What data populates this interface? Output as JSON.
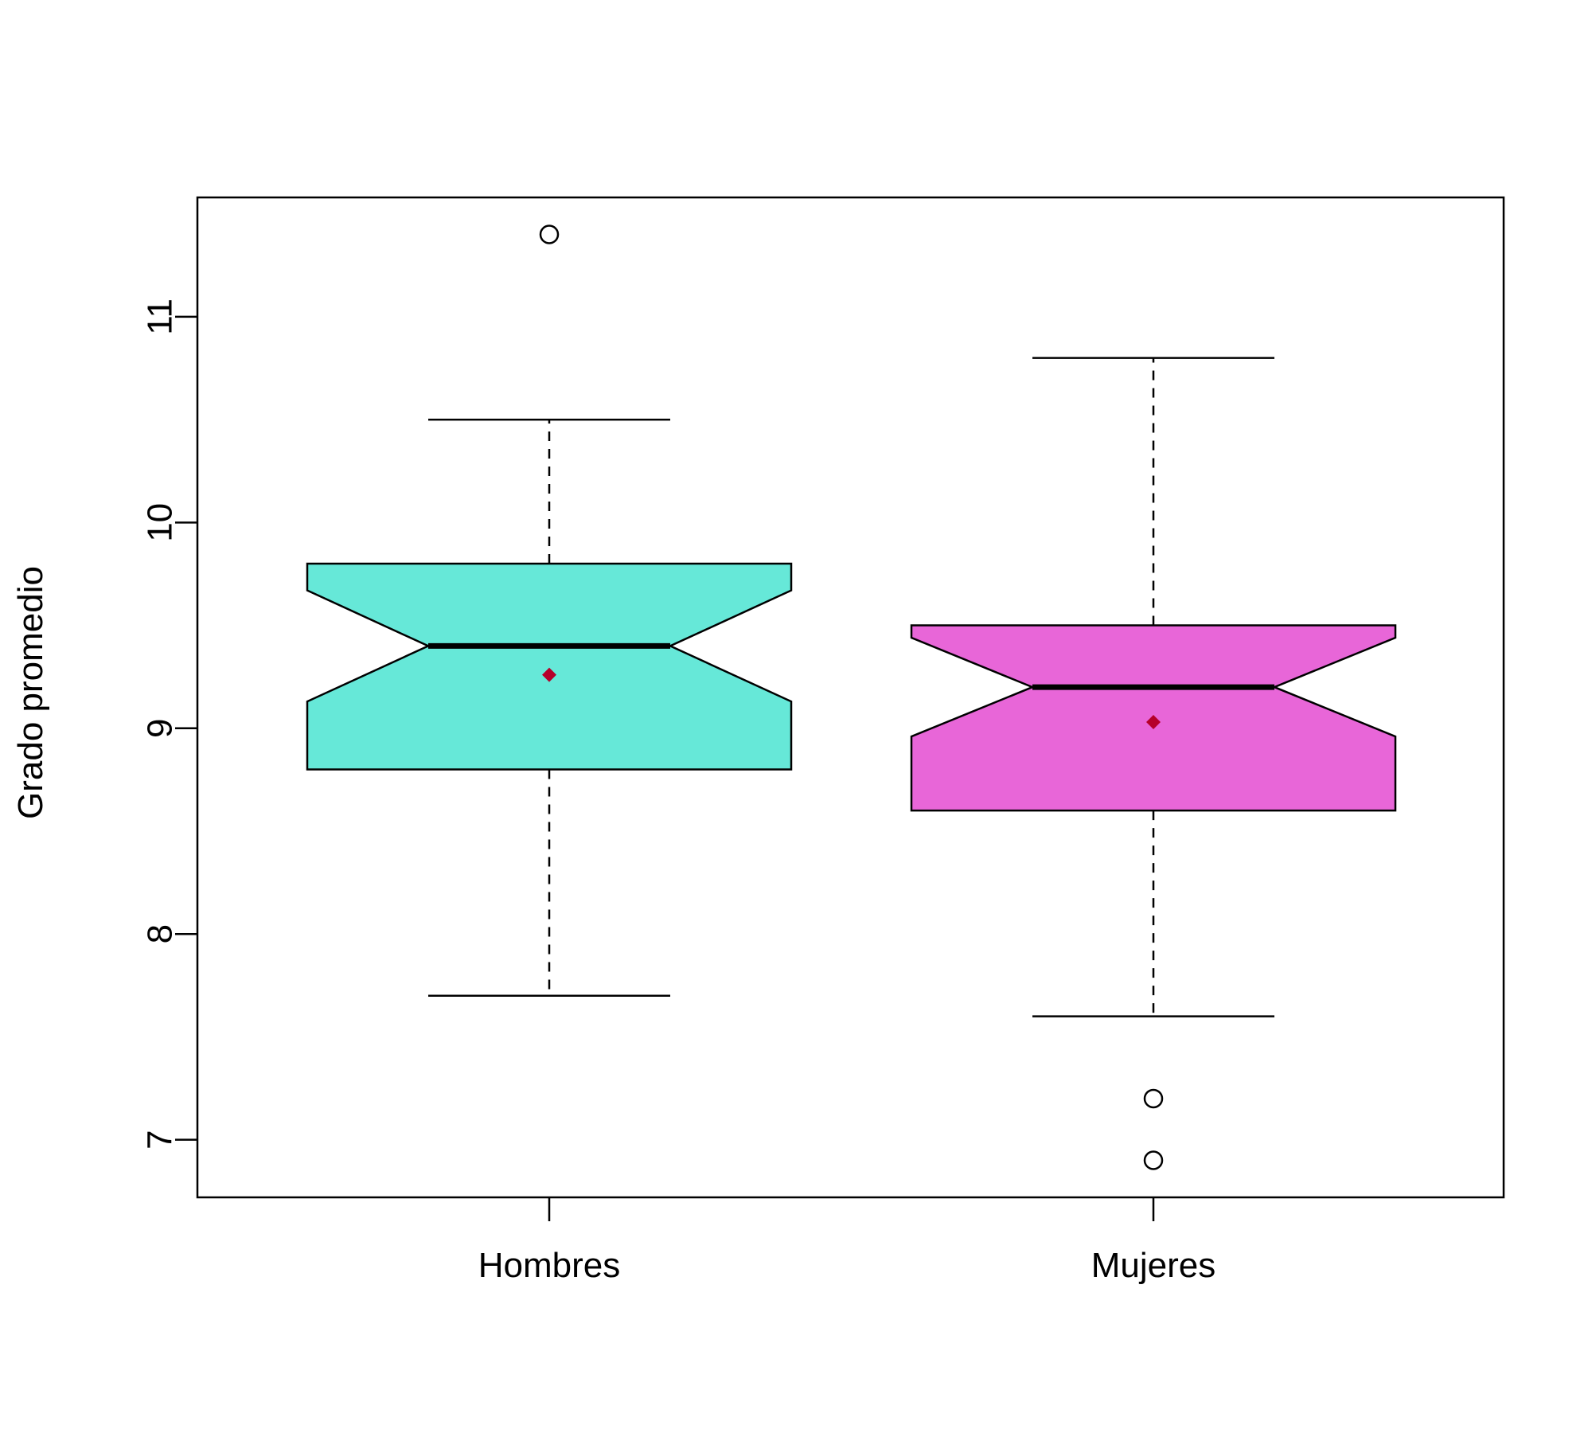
{
  "chart_data": {
    "type": "boxplot",
    "title": "",
    "xlabel": "",
    "ylabel": "Grado promedio",
    "ylim": [
      6.72,
      11.58
    ],
    "y_ticks": [
      7,
      8,
      9,
      10,
      11
    ],
    "notched": true,
    "grid": false,
    "legend": "none",
    "categories": [
      "Hombres",
      "Mujeres"
    ],
    "boxes": [
      {
        "category": "Hombres",
        "whisker_low": 7.7,
        "q1": 8.8,
        "median": 9.4,
        "q3": 9.8,
        "whisker_high": 10.5,
        "notch_low": 9.13,
        "notch_high": 9.67,
        "mean": 9.26,
        "outliers": [
          11.4
        ],
        "color": "#66e8d8"
      },
      {
        "category": "Mujeres",
        "whisker_low": 7.6,
        "q1": 8.6,
        "median": 9.2,
        "q3": 9.5,
        "whisker_high": 10.8,
        "notch_low": 8.96,
        "notch_high": 9.44,
        "mean": 9.03,
        "outliers": [
          7.2,
          6.9
        ],
        "color": "#e866d8"
      }
    ],
    "mean_marker_color": "#b5002a"
  }
}
